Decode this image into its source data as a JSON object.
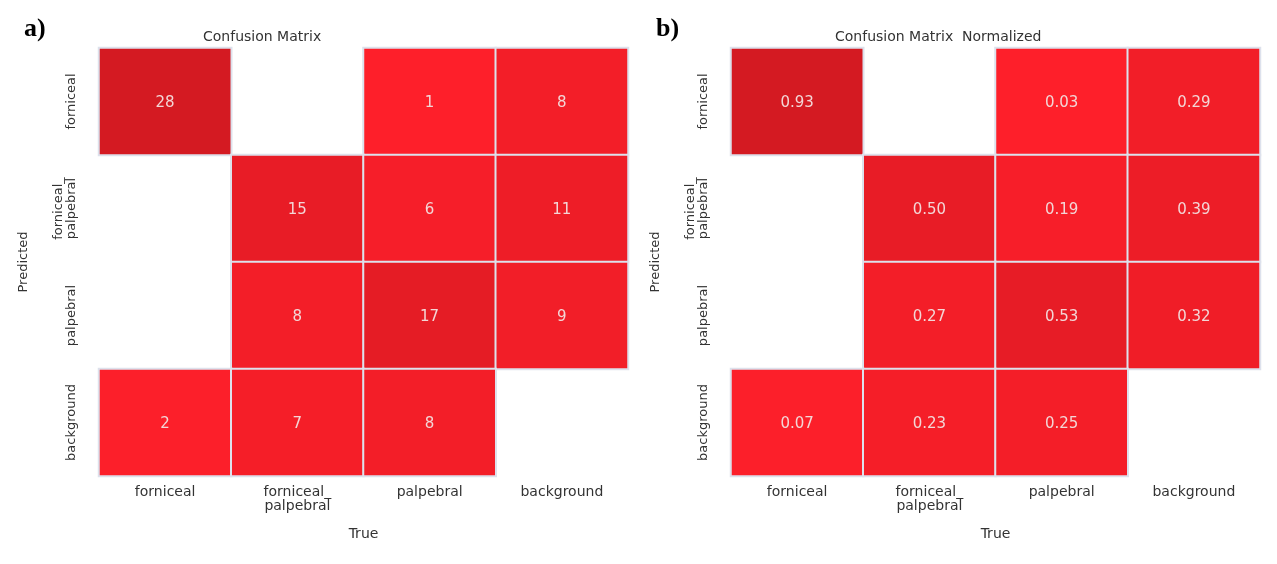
{
  "chart_data": [
    {
      "type": "heatmap",
      "title": "Confusion Matrix",
      "xlabel": "True",
      "ylabel": "Predicted",
      "annotations": [
        "a)"
      ],
      "categories": [
        "forniceal",
        "forniceal_palpebral",
        "palpebral",
        "background"
      ],
      "y_categories": [
        "forniceal",
        "forniceal_palpebral",
        "palpebral",
        "background"
      ],
      "cells": [
        [
          28,
          null,
          1,
          8
        ],
        [
          null,
          15,
          6,
          11
        ],
        [
          null,
          8,
          17,
          9
        ],
        [
          2,
          7,
          8,
          null
        ]
      ],
      "data_labels": true
    },
    {
      "type": "heatmap",
      "title": "Confusion Matrix  Normalized",
      "xlabel": "True",
      "ylabel": "Predicted",
      "annotations": [
        "b)"
      ],
      "categories": [
        "forniceal",
        "forniceal_palpebral",
        "palpebral",
        "background"
      ],
      "y_categories": [
        "forniceal",
        "forniceal_palpebral",
        "palpebral",
        "background"
      ],
      "cells": [
        [
          0.93,
          null,
          0.03,
          0.29
        ],
        [
          null,
          0.5,
          0.19,
          0.39
        ],
        [
          null,
          0.27,
          0.53,
          0.32
        ],
        [
          0.07,
          0.23,
          0.25,
          null
        ]
      ],
      "cell_labels": [
        [
          "0.93",
          null,
          "0.03",
          "0.29"
        ],
        [
          null,
          "0.50",
          "0.19",
          "0.39"
        ],
        [
          null,
          "0.27",
          "0.53",
          "0.32"
        ],
        [
          "0.07",
          "0.23",
          "0.25",
          null
        ]
      ],
      "data_labels": true
    }
  ]
}
